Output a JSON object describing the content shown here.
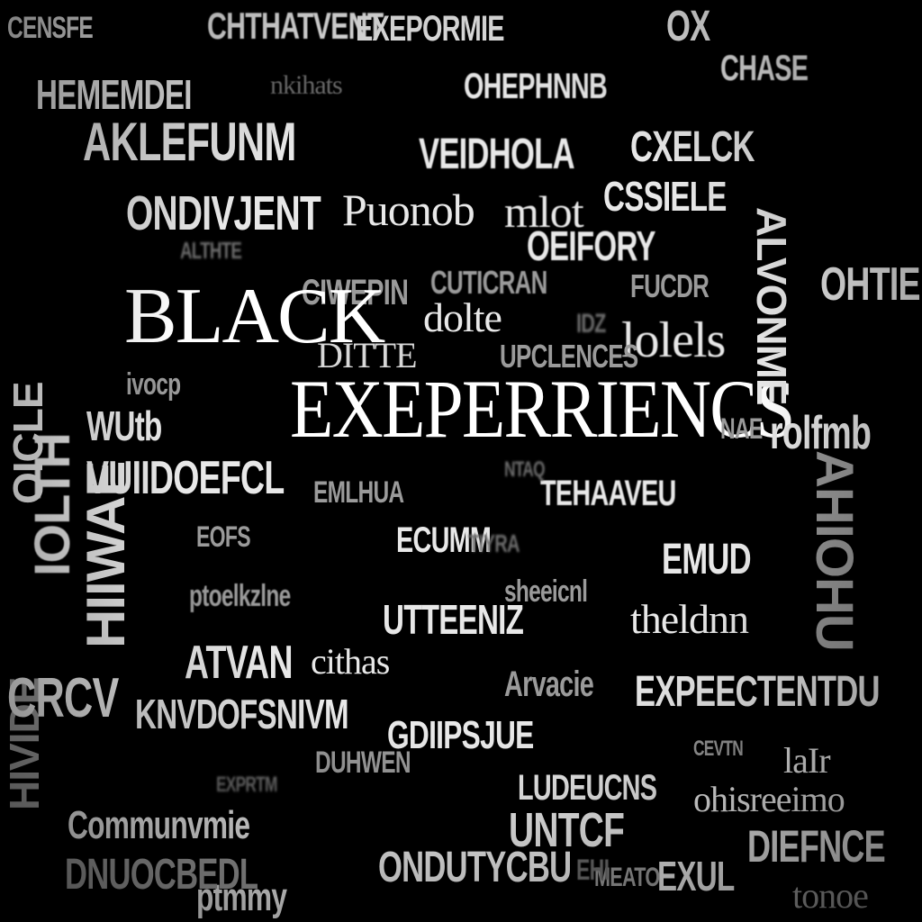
{
  "hero": {
    "line1": "BLACK",
    "line2": "EXEPERRIENCS"
  },
  "words": {
    "w01": "CENSFE",
    "w02": "CHTHATVENT",
    "w03": "EXEPORMIE",
    "w04": "OHEPHNNB",
    "w05": "CHASE",
    "w06": "OX",
    "w07": "HEMEMDEI",
    "w08": "CXELCK",
    "w09": "AKLEFUNM",
    "w10": "ONDIVJENT",
    "w11": "Puonob",
    "w12": "CSSIELE",
    "w13": "VEIDHOLA",
    "w14": "mlot",
    "w15": "OEIFORY",
    "w16": "CIWEPIN",
    "w17": "CUTICRAN",
    "w18": "FUCDR",
    "w19": "DITTE",
    "w20": "dolte",
    "w21": "lolels",
    "w22": "UPCLENCES",
    "w23": "OICLE",
    "w24": "ALVONME",
    "w25": "rolfmb",
    "w26": "VUIIDOEFCL",
    "w27": "EMUD",
    "w28": "WUtb",
    "w29": "EMLHUA",
    "w30": "TEHAAVEU",
    "w31": "ECUMM",
    "w32": "ATVAN",
    "w33": "cithas",
    "w34": "UTTEENIZ",
    "w35": "theldnn",
    "w36": "KNVDOFSNIVM",
    "w37": "GDIIPSJUE",
    "w38": "EXPEECTENTDU",
    "w39": "LUDEUCNS",
    "w40": "Communvmie",
    "w41": "ONDUTYCBU",
    "w42": "UNTCF",
    "w43": "DIEFNCE",
    "w44": "ptmmy",
    "w45": "ohisreeimo",
    "w46": "laIr",
    "w47": "EXUL",
    "w48": "Arvacie",
    "w49": "IOLTH",
    "w50": "CRCV",
    "w51": "ALTHTE",
    "w52": "DNUOCBEDL",
    "w53": "OHTIE",
    "w54": "AHIOHU",
    "w55": "NAE",
    "w56": "IDZ",
    "w57": "HIIWAE",
    "w58": "NTAQ",
    "w59": "HIVIDE",
    "w60": "EOFS",
    "w61": "ivocp",
    "w62": "ptoelkzlne",
    "w63": "sheeicnl",
    "w64": "DUHWEN",
    "w65": "EHI",
    "w66": "EXPRTM",
    "w67": "TIYRA",
    "w68": "CEVTN",
    "w69": "nkihats",
    "w70": "MEATO",
    "w71": "tonoe"
  },
  "colors": {
    "background": "#000000",
    "text": "#e8e8e8",
    "hero": "#ffffff"
  }
}
